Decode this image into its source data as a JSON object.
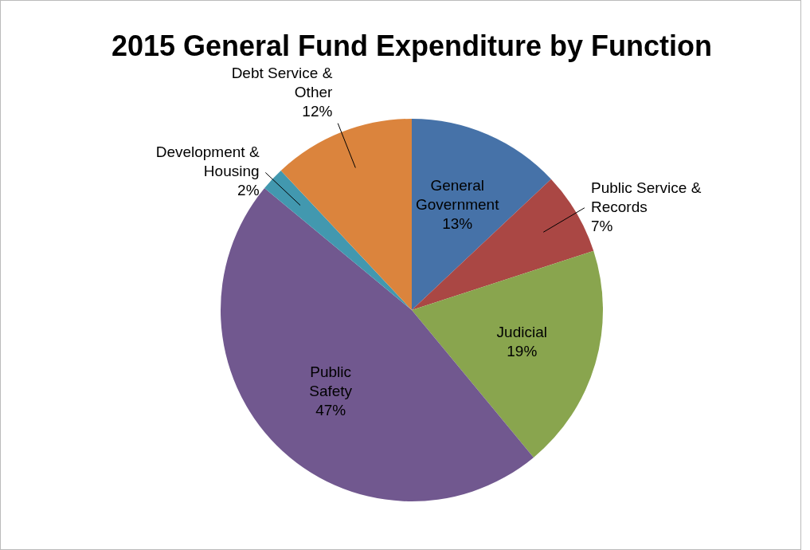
{
  "chart_data": {
    "type": "pie",
    "title": "2015 General Fund Expenditure by Function",
    "categories": [
      "General Government",
      "Public Service & Records",
      "Judicial",
      "Public Safety",
      "Development & Housing",
      "Debt Service & Other"
    ],
    "values": [
      13,
      7,
      19,
      47,
      2,
      12
    ],
    "value_labels": [
      "13%",
      "7%",
      "19%",
      "47%",
      "2%",
      "12%"
    ],
    "colors": [
      "#4672a8",
      "#aa4744",
      "#89a54e",
      "#71588f",
      "#4298af",
      "#db843d"
    ]
  }
}
